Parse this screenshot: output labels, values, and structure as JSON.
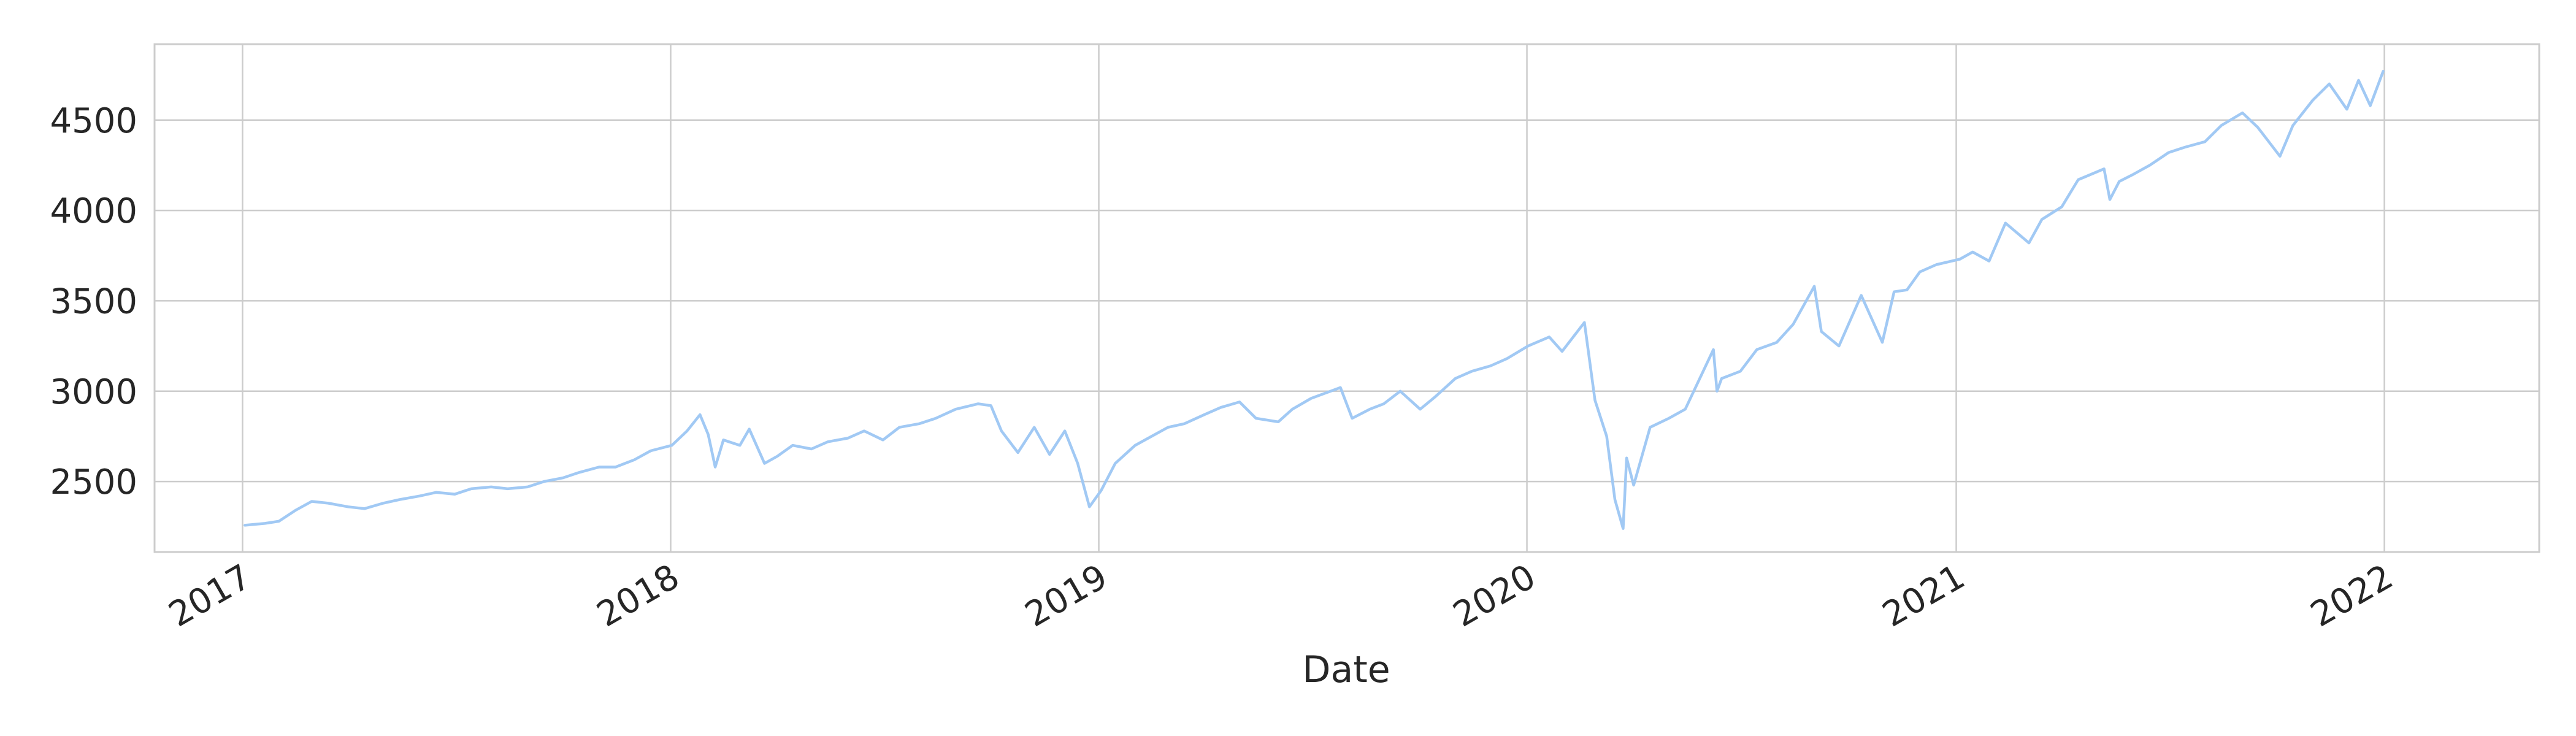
{
  "chart_data": {
    "type": "line",
    "title": "",
    "xlabel": "Date",
    "ylabel": "",
    "x_axis": {
      "kind": "date",
      "range": [
        "2016-10-18",
        "2022-05-13"
      ],
      "ticks": [
        "2017-01-01",
        "2018-01-01",
        "2019-01-01",
        "2020-01-01",
        "2021-01-01",
        "2022-01-01"
      ],
      "tick_labels": [
        "2017",
        "2018",
        "2019",
        "2020",
        "2021",
        "2022"
      ],
      "tick_label_rotation": "30 degrees"
    },
    "y_axis": {
      "range": [
        2110,
        4920
      ],
      "ticks": [
        2500,
        3000,
        3500,
        4000,
        4500
      ],
      "tick_labels": [
        "2500",
        "3000",
        "3500",
        "4000",
        "4500"
      ]
    },
    "grid": true,
    "legend": "none",
    "colors": {
      "line": "#a1c9f4",
      "grid": "#cccccc",
      "text": "#262626",
      "background": "#ffffff"
    },
    "series": [
      {
        "x": [
          "2017-01-03",
          "2017-01-20",
          "2017-02-01",
          "2017-02-15",
          "2017-03-01",
          "2017-03-15",
          "2017-04-01",
          "2017-04-15",
          "2017-05-01",
          "2017-05-15",
          "2017-06-01",
          "2017-06-15",
          "2017-07-01",
          "2017-07-15",
          "2017-08-01",
          "2017-08-15",
          "2017-09-01",
          "2017-09-15",
          "2017-10-01",
          "2017-10-15",
          "2017-11-01",
          "2017-11-15",
          "2017-12-01",
          "2017-12-15",
          "2018-01-02",
          "2018-01-15",
          "2018-01-26",
          "2018-02-02",
          "2018-02-08",
          "2018-02-15",
          "2018-03-01",
          "2018-03-09",
          "2018-03-22",
          "2018-04-02",
          "2018-04-15",
          "2018-05-01",
          "2018-05-15",
          "2018-06-01",
          "2018-06-15",
          "2018-07-01",
          "2018-07-15",
          "2018-08-01",
          "2018-08-15",
          "2018-09-01",
          "2018-09-20",
          "2018-10-01",
          "2018-10-10",
          "2018-10-24",
          "2018-11-07",
          "2018-11-20",
          "2018-12-03",
          "2018-12-14",
          "2018-12-24",
          "2019-01-03",
          "2019-01-15",
          "2019-02-01",
          "2019-02-15",
          "2019-03-01",
          "2019-03-15",
          "2019-04-01",
          "2019-04-15",
          "2019-05-01",
          "2019-05-15",
          "2019-06-03",
          "2019-06-15",
          "2019-07-01",
          "2019-07-26",
          "2019-08-05",
          "2019-08-20",
          "2019-09-01",
          "2019-09-15",
          "2019-10-02",
          "2019-10-15",
          "2019-11-01",
          "2019-11-15",
          "2019-12-01",
          "2019-12-15",
          "2020-01-02",
          "2020-01-20",
          "2020-01-31",
          "2020-02-19",
          "2020-02-28",
          "2020-03-09",
          "2020-03-16",
          "2020-03-23",
          "2020-03-26",
          "2020-04-01",
          "2020-04-15",
          "2020-05-01",
          "2020-05-15",
          "2020-06-08",
          "2020-06-11",
          "2020-06-15",
          "2020-07-01",
          "2020-07-15",
          "2020-08-01",
          "2020-08-15",
          "2020-09-02",
          "2020-09-08",
          "2020-09-23",
          "2020-10-12",
          "2020-10-30",
          "2020-11-09",
          "2020-11-20",
          "2020-12-01",
          "2020-12-15",
          "2021-01-04",
          "2021-01-15",
          "2021-01-29",
          "2021-02-12",
          "2021-03-04",
          "2021-03-15",
          "2021-04-01",
          "2021-04-15",
          "2021-05-07",
          "2021-05-12",
          "2021-05-20",
          "2021-06-01",
          "2021-06-15",
          "2021-07-01",
          "2021-07-15",
          "2021-08-01",
          "2021-08-15",
          "2021-09-02",
          "2021-09-15",
          "2021-10-04",
          "2021-10-15",
          "2021-11-01",
          "2021-11-15",
          "2021-11-30",
          "2021-12-10",
          "2021-12-20",
          "2021-12-31"
        ],
        "y": [
          2258,
          2268,
          2280,
          2340,
          2390,
          2380,
          2360,
          2350,
          2380,
          2400,
          2420,
          2440,
          2430,
          2460,
          2470,
          2460,
          2470,
          2500,
          2520,
          2550,
          2580,
          2580,
          2620,
          2670,
          2700,
          2780,
          2870,
          2760,
          2580,
          2730,
          2700,
          2790,
          2600,
          2640,
          2700,
          2680,
          2720,
          2740,
          2780,
          2730,
          2800,
          2820,
          2850,
          2900,
          2930,
          2920,
          2780,
          2660,
          2800,
          2650,
          2780,
          2600,
          2360,
          2450,
          2600,
          2700,
          2750,
          2800,
          2820,
          2870,
          2910,
          2940,
          2850,
          2830,
          2900,
          2960,
          3020,
          2850,
          2900,
          2930,
          3000,
          2900,
          2970,
          3070,
          3110,
          3140,
          3180,
          3250,
          3300,
          3220,
          3380,
          2950,
          2750,
          2400,
          2240,
          2630,
          2480,
          2800,
          2850,
          2900,
          3230,
          3000,
          3070,
          3110,
          3230,
          3270,
          3370,
          3580,
          3330,
          3250,
          3530,
          3270,
          3550,
          3560,
          3660,
          3700,
          3730,
          3770,
          3720,
          3930,
          3820,
          3950,
          4020,
          4170,
          4230,
          4060,
          4160,
          4200,
          4250,
          4320,
          4350,
          4380,
          4470,
          4540,
          4460,
          4300,
          4470,
          4610,
          4700,
          4560,
          4720,
          4580,
          4770
        ]
      }
    ]
  }
}
